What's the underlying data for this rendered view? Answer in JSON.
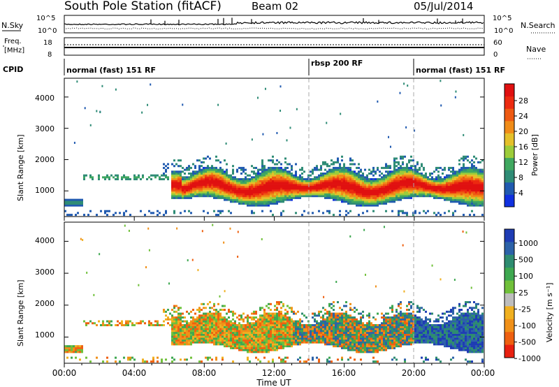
{
  "header": {
    "title": "South Pole Station (fitACF)",
    "beam": "Beam 02",
    "date": "05/Jul/2014"
  },
  "top_panels": {
    "nsky": {
      "label": "N.Sky",
      "ticks": [
        "10^5",
        "10^0"
      ]
    },
    "nsearch": {
      "label": "N.Search",
      "ticks": [
        "10^5",
        "10^0"
      ]
    },
    "freq": {
      "label_line1": "Freq.",
      "label_line2": "[MHz]",
      "ticks": [
        "18",
        "8"
      ]
    },
    "nave": {
      "label": "Nave",
      "ticks": [
        "60",
        "0"
      ]
    },
    "cpid": {
      "label": "CPID",
      "segments": [
        {
          "label": "normal (fast) 151 RF",
          "start_hour": 0,
          "end_hour": 14.0
        },
        {
          "label": "rbsp 200 RF",
          "start_hour": 14.0,
          "end_hour": 20.0
        },
        {
          "label": "normal (fast) 151 RF",
          "start_hour": 20.0,
          "end_hour": 24.0
        }
      ]
    }
  },
  "x_axis": {
    "label": "Time UT",
    "ticks": [
      "00:00",
      "04:00",
      "08:00",
      "12:00",
      "16:00",
      "20:00",
      "00:00"
    ]
  },
  "chart_data": [
    {
      "type": "heatmap",
      "ylabel": "Slant Range [km]",
      "yticks": [
        "1000",
        "2000",
        "3000",
        "4000"
      ],
      "ylim": [
        180,
        4600
      ],
      "xlim_hours": [
        0,
        24
      ],
      "colorbar": {
        "label": "Power [dB]",
        "ticks": [
          "4",
          "8",
          "12",
          "16",
          "20",
          "24",
          "28"
        ],
        "colors": [
          "#1030e0",
          "#205ab0",
          "#2f8c76",
          "#40a860",
          "#9ccc3a",
          "#e4c02a",
          "#f08c18",
          "#ee5a12",
          "#ec2a10",
          "#e01010"
        ]
      }
    },
    {
      "type": "heatmap",
      "ylabel": "Slant Range [km]",
      "yticks": [
        "1000",
        "2000",
        "3000",
        "4000"
      ],
      "ylim": [
        180,
        4600
      ],
      "xlim_hours": [
        0,
        24
      ],
      "colorbar": {
        "label": "Velocity [m s⁻¹]",
        "ticks": [
          "1000",
          "500",
          "100",
          "25",
          "-25",
          "-100",
          "-500",
          "-1000"
        ],
        "colors": [
          "#1e3cb4",
          "#2c62a8",
          "#2e8c70",
          "#3ea850",
          "#70c03a",
          "#bdbdbd",
          "#f0b020",
          "#f09018",
          "#ee6010",
          "#e82010"
        ]
      }
    }
  ]
}
